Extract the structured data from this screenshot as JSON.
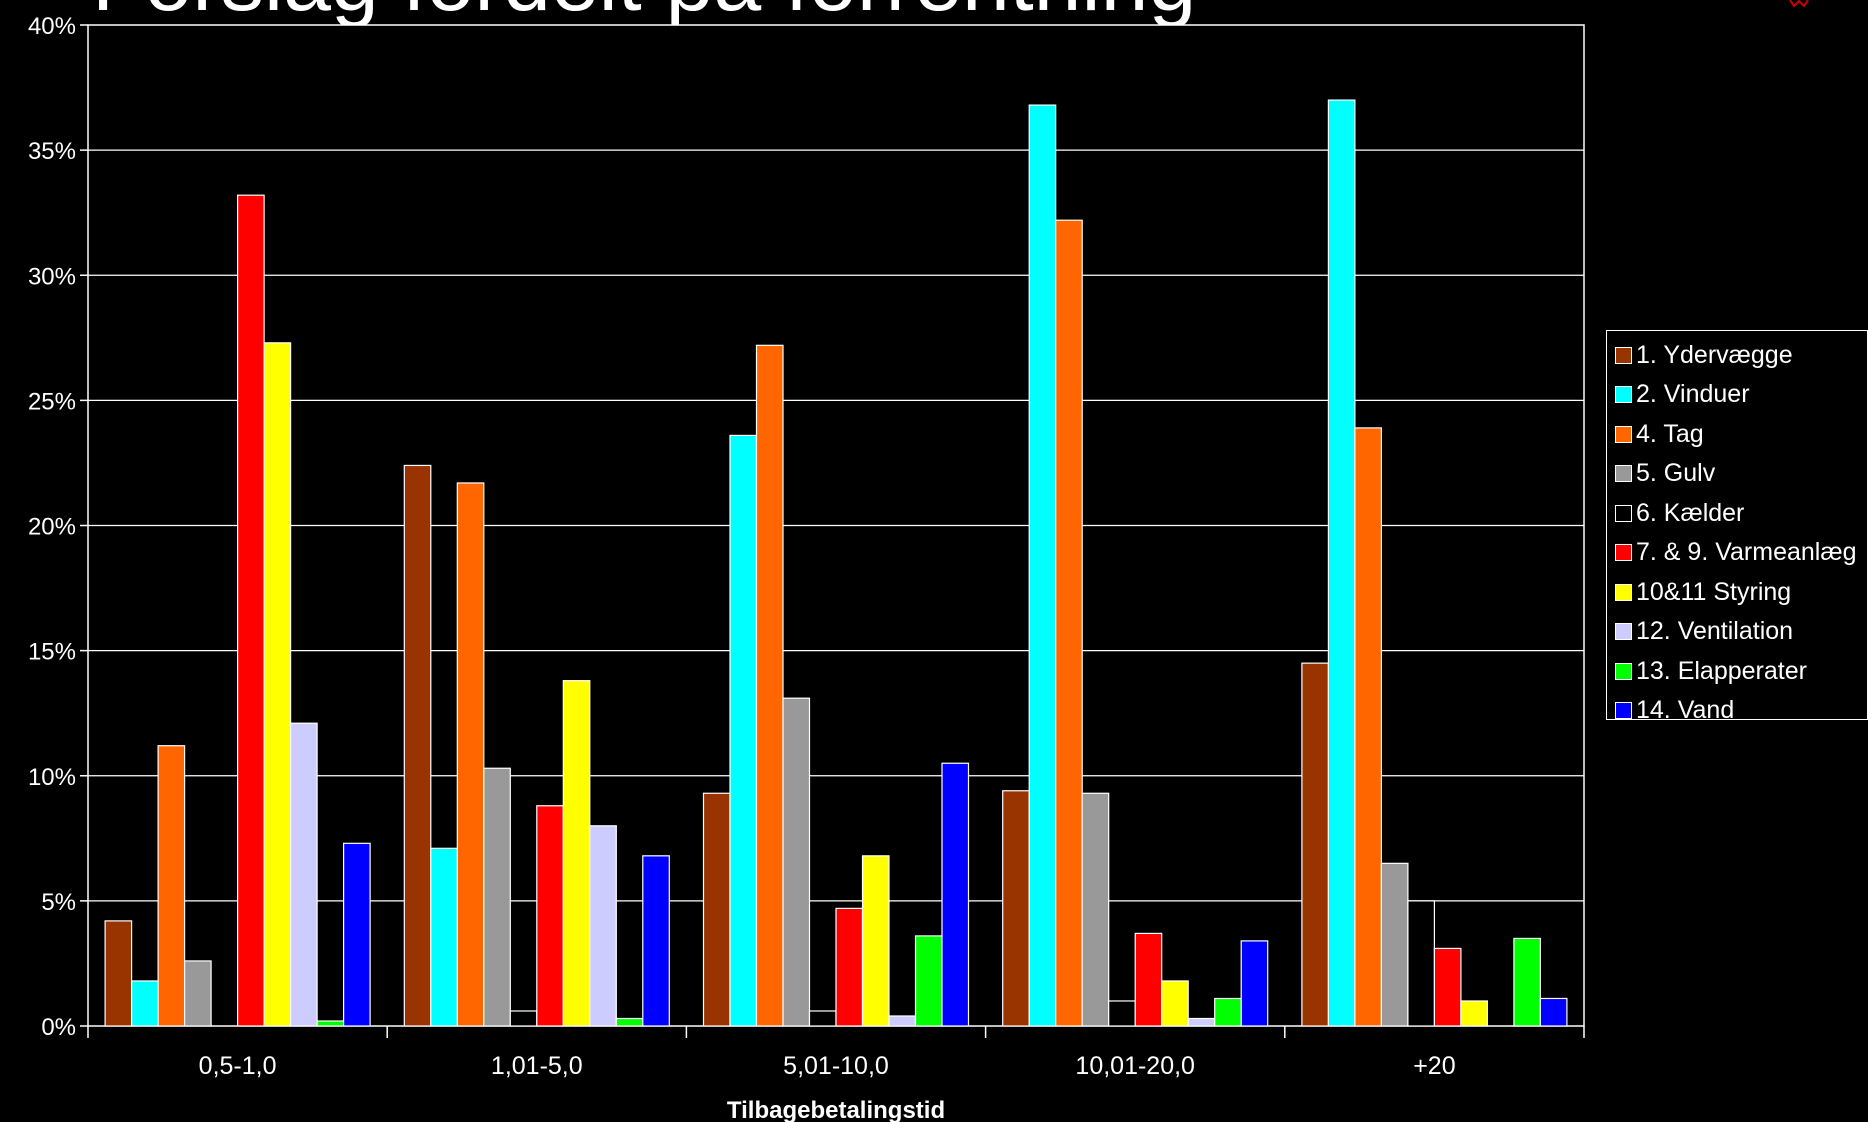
{
  "page": {
    "title": "Forslag fordelt på forrentning"
  },
  "chart_data": {
    "type": "bar",
    "title": "Forslag fordelt på forrentning",
    "xlabel": "Tilbagebetalingstid",
    "ylabel": "",
    "ylim": [
      0,
      40
    ],
    "y_ticks": [
      "0%",
      "5%",
      "10%",
      "15%",
      "20%",
      "25%",
      "30%",
      "35%",
      "40%"
    ],
    "grid": true,
    "legend_position": "right",
    "categories": [
      "0,5-1,0",
      "1,01-5,0",
      "5,01-10,0",
      "10,01-20,0",
      "+20"
    ],
    "series": [
      {
        "name": "1. Ydervægge",
        "color": "#993300",
        "values": [
          4.2,
          22.4,
          9.3,
          9.4,
          14.5
        ]
      },
      {
        "name": "2. Vinduer",
        "color": "#00FFFF",
        "values": [
          1.8,
          7.1,
          23.6,
          36.8,
          37.0
        ]
      },
      {
        "name": "4. Tag",
        "color": "#FF6600",
        "values": [
          11.2,
          21.7,
          27.2,
          32.2,
          23.9
        ]
      },
      {
        "name": "5. Gulv",
        "color": "#999999",
        "values": [
          2.6,
          10.3,
          13.1,
          9.3,
          6.5
        ]
      },
      {
        "name": "6. Kælder",
        "color": "#000000",
        "values": [
          0.0,
          0.6,
          0.6,
          1.0,
          5.0
        ]
      },
      {
        "name": "7. & 9. Varmeanlæg",
        "color": "#FF0000",
        "values": [
          33.2,
          8.8,
          4.7,
          3.7,
          3.1
        ]
      },
      {
        "name": "10&11 Styring",
        "color": "#FFFF00",
        "values": [
          27.3,
          13.8,
          6.8,
          1.8,
          1.0
        ]
      },
      {
        "name": "12. Ventilation",
        "color": "#CCCCFF",
        "values": [
          12.1,
          8.0,
          0.4,
          0.3,
          0.0
        ]
      },
      {
        "name": "13. Elapperater",
        "color": "#00FF00",
        "values": [
          0.2,
          0.3,
          3.6,
          1.1,
          3.5
        ]
      },
      {
        "name": "14. Vand",
        "color": "#0000FF",
        "values": [
          7.3,
          6.8,
          10.5,
          3.4,
          1.1
        ]
      }
    ]
  }
}
